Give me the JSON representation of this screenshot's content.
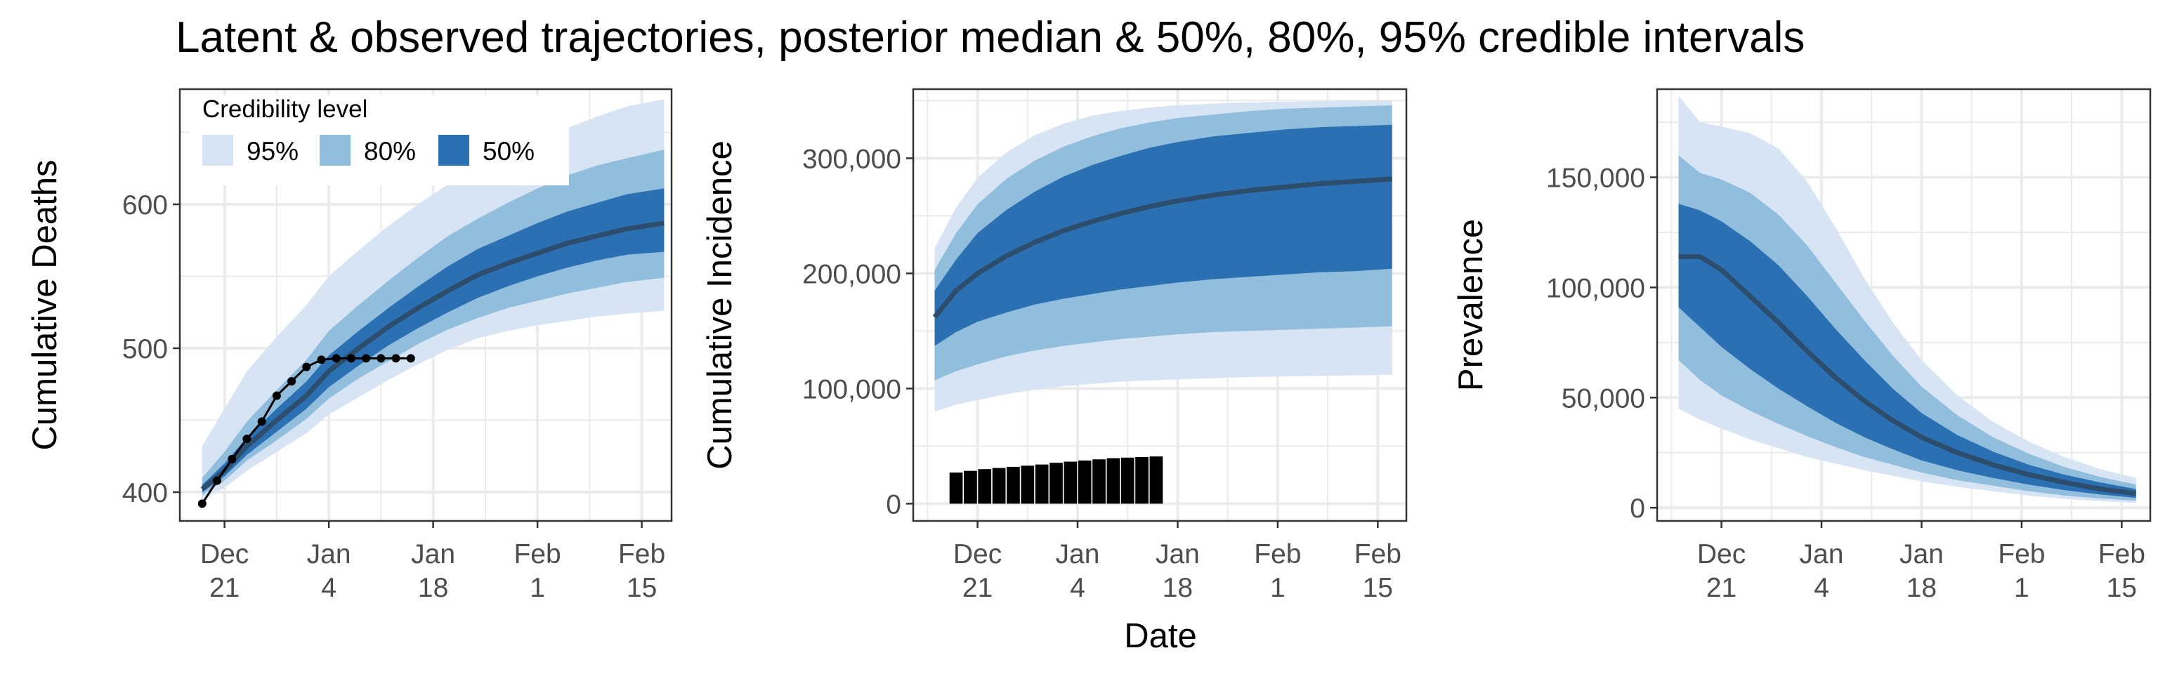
{
  "title": "Latent & observed trajectories, posterior median & 50%, 80%, 95% credible intervals",
  "colors": {
    "band95": "#d6e4f4",
    "band80": "#92bedd",
    "band50": "#2b70b3",
    "median": "#2d4d6d",
    "observed": "#000000",
    "grid": "#ebebeb"
  },
  "legend": {
    "title": "Credibility level",
    "items": [
      "95%",
      "80%",
      "50%"
    ],
    "placement": "top-left, inside first panel"
  },
  "x_axis": {
    "label": "Date",
    "ticks": [
      {
        "top": "Dec",
        "bottom": "21"
      },
      {
        "top": "Jan",
        "bottom": "4"
      },
      {
        "top": "Jan",
        "bottom": "18"
      },
      {
        "top": "Feb",
        "bottom": "1"
      },
      {
        "top": "Feb",
        "bottom": "15"
      }
    ]
  },
  "chart_data": [
    {
      "type": "area",
      "ylabel": "Cumulative Deaths",
      "x_dates": [
        "2020-12-18",
        "2020-12-21",
        "2020-12-24",
        "2020-12-28",
        "2021-01-01",
        "2021-01-04",
        "2021-01-08",
        "2021-01-12",
        "2021-01-16",
        "2021-01-20",
        "2021-01-24",
        "2021-01-28",
        "2021-02-01",
        "2021-02-05",
        "2021-02-09",
        "2021-02-13",
        "2021-02-18"
      ],
      "xlim": [
        "2020-12-15",
        "2021-02-19"
      ],
      "ylim": [
        380,
        680
      ],
      "yticks": [
        400,
        500,
        600
      ],
      "ytick_labels": [
        "400",
        "500",
        "600"
      ],
      "bands": {
        "q025": [
          395,
          403,
          415,
          428,
          441,
          454,
          466,
          478,
          489,
          499,
          507,
          512,
          516,
          519,
          522,
          524,
          526
        ],
        "q10": [
          398,
          408,
          422,
          436,
          451,
          465,
          479,
          491,
          503,
          513,
          521,
          528,
          533,
          538,
          542,
          546,
          549
        ],
        "q25": [
          400,
          411,
          426,
          442,
          458,
          473,
          488,
          502,
          514,
          525,
          535,
          543,
          550,
          556,
          561,
          565,
          567
        ],
        "median": [
          402,
          415,
          432,
          450,
          467,
          484,
          500,
          515,
          528,
          540,
          551,
          559,
          566,
          573,
          578,
          583,
          587
        ],
        "q75": [
          405,
          420,
          438,
          458,
          477,
          495,
          512,
          528,
          543,
          557,
          569,
          578,
          587,
          595,
          601,
          607,
          611
        ],
        "q90": [
          410,
          428,
          449,
          471,
          492,
          512,
          530,
          547,
          563,
          578,
          590,
          601,
          611,
          620,
          627,
          632,
          638
        ],
        "q975": [
          432,
          458,
          484,
          508,
          530,
          550,
          568,
          585,
          600,
          614,
          626,
          636,
          645,
          653,
          661,
          668,
          673
        ]
      },
      "observed": {
        "style": "line-points",
        "x_dates": [
          "2020-12-18",
          "2020-12-20",
          "2020-12-22",
          "2020-12-24",
          "2020-12-26",
          "2020-12-28",
          "2020-12-30",
          "2021-01-01",
          "2021-01-03",
          "2021-01-05",
          "2021-01-07",
          "2021-01-09",
          "2021-01-11",
          "2021-01-13",
          "2021-01-15"
        ],
        "values": [
          392,
          408,
          423,
          437,
          449,
          467,
          477,
          487,
          492,
          493,
          493,
          493,
          493,
          493,
          493
        ]
      }
    },
    {
      "type": "area",
      "ylabel": "Cumulative Incidence",
      "x_dates": [
        "2020-12-15",
        "2020-12-18",
        "2020-12-21",
        "2020-12-25",
        "2020-12-29",
        "2021-01-02",
        "2021-01-06",
        "2021-01-10",
        "2021-01-14",
        "2021-01-18",
        "2021-01-23",
        "2021-01-28",
        "2021-02-02",
        "2021-02-07",
        "2021-02-12",
        "2021-02-17"
      ],
      "xlim": [
        "2020-12-12",
        "2021-02-19"
      ],
      "ylim": [
        -15000,
        360000
      ],
      "yticks": [
        0,
        100000,
        200000,
        300000
      ],
      "ytick_labels": [
        "0",
        "100,000",
        "200,000",
        "300,000"
      ],
      "bands": {
        "q025": [
          80000,
          86000,
          90000,
          95000,
          99000,
          102000,
          104000,
          106000,
          107000,
          108000,
          109000,
          110000,
          110500,
          111000,
          111500,
          112000
        ],
        "q10": [
          107000,
          115000,
          121000,
          128000,
          133000,
          137000,
          140000,
          143000,
          145000,
          147000,
          149000,
          150000,
          151000,
          152000,
          153000,
          154000
        ],
        "q25": [
          137000,
          149000,
          158000,
          166000,
          173000,
          178000,
          182000,
          186000,
          189000,
          192000,
          195000,
          197000,
          199000,
          201000,
          202000,
          204000
        ],
        "median": [
          162000,
          185000,
          200000,
          215000,
          227000,
          237000,
          245000,
          252000,
          258000,
          263000,
          268000,
          272000,
          275000,
          278000,
          280000,
          282000
        ],
        "q75": [
          185000,
          212000,
          235000,
          255000,
          271000,
          284000,
          294000,
          302000,
          309000,
          314000,
          319000,
          322000,
          325000,
          327000,
          328000,
          329000
        ],
        "q90": [
          203000,
          235000,
          260000,
          282000,
          298000,
          310000,
          319000,
          326000,
          331000,
          335000,
          338000,
          341000,
          343000,
          344000,
          345000,
          346000
        ],
        "q975": [
          222000,
          257000,
          283000,
          305000,
          320000,
          330000,
          337000,
          341000,
          344000,
          346000,
          347500,
          348500,
          349000,
          349500,
          350000,
          350000
        ]
      },
      "observed": {
        "style": "bars",
        "x_dates": [
          "2020-12-18",
          "2020-12-20",
          "2020-12-22",
          "2020-12-24",
          "2020-12-26",
          "2020-12-28",
          "2020-12-30",
          "2021-01-01",
          "2021-01-03",
          "2021-01-05",
          "2021-01-07",
          "2021-01-09",
          "2021-01-11",
          "2021-01-13",
          "2021-01-15"
        ],
        "values": [
          27000,
          28500,
          30000,
          31000,
          32000,
          33000,
          34000,
          35500,
          36500,
          37500,
          38500,
          39500,
          40000,
          40500,
          41000
        ]
      }
    },
    {
      "type": "area",
      "ylabel": "Prevalence",
      "x_dates": [
        "2020-12-15",
        "2020-12-18",
        "2020-12-21",
        "2020-12-25",
        "2020-12-29",
        "2021-01-02",
        "2021-01-06",
        "2021-01-10",
        "2021-01-14",
        "2021-01-18",
        "2021-01-23",
        "2021-01-28",
        "2021-02-02",
        "2021-02-07",
        "2021-02-12",
        "2021-02-17"
      ],
      "xlim": [
        "2020-12-12",
        "2021-02-19"
      ],
      "ylim": [
        -6000,
        190000
      ],
      "yticks": [
        0,
        50000,
        100000,
        150000
      ],
      "ytick_labels": [
        "0",
        "50,000",
        "100,000",
        "150,000"
      ],
      "bands": {
        "q025": [
          45000,
          40000,
          36000,
          31000,
          27000,
          23000,
          20000,
          17000,
          14500,
          12000,
          9500,
          7500,
          5500,
          4000,
          3000,
          2200
        ],
        "q10": [
          67000,
          58000,
          51000,
          44000,
          38000,
          32500,
          27500,
          23000,
          19500,
          16000,
          12500,
          10000,
          7500,
          5500,
          4200,
          3200
        ],
        "q25": [
          91000,
          82000,
          73000,
          63000,
          54000,
          46000,
          38500,
          32000,
          26500,
          21500,
          17000,
          13500,
          10500,
          8000,
          6000,
          4500
        ],
        "median": [
          114000,
          114000,
          108000,
          96000,
          84000,
          71000,
          59000,
          48500,
          39500,
          32000,
          25000,
          19500,
          15000,
          11500,
          8500,
          6500
        ],
        "q75": [
          138000,
          135000,
          130000,
          121000,
          110000,
          96000,
          81000,
          67000,
          54000,
          43000,
          33000,
          25500,
          19500,
          15000,
          11500,
          8500
        ],
        "q90": [
          160000,
          152000,
          149000,
          143000,
          133000,
          119000,
          102000,
          85000,
          69000,
          55000,
          42000,
          32000,
          24500,
          18500,
          14000,
          10500
        ],
        "q975": [
          187000,
          175000,
          173000,
          170000,
          163000,
          148000,
          127000,
          104000,
          84000,
          67000,
          51000,
          39000,
          30000,
          23000,
          17500,
          13500
        ]
      }
    }
  ]
}
